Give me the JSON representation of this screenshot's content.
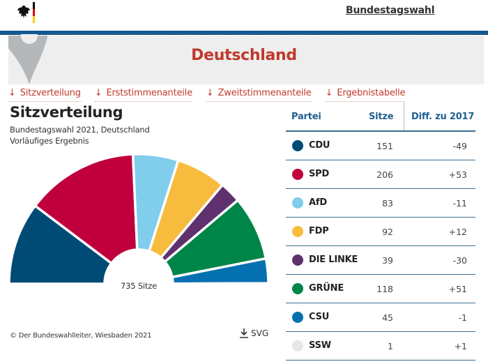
{
  "header": {
    "logo_icon": "federal-eagle-icon",
    "nav_link": "Bundestagswahl"
  },
  "banner": {
    "title": "Deutschland",
    "icon": "map-pin-icon"
  },
  "anchors": [
    {
      "label": "Sitzverteilung",
      "icon": "arrow-down-icon"
    },
    {
      "label": "Erststimmenanteile",
      "icon": "arrow-down-icon"
    },
    {
      "label": "Zweitstimmenanteile",
      "icon": "arrow-down-icon"
    },
    {
      "label": "Ergebnistabelle",
      "icon": "arrow-down-icon"
    }
  ],
  "section": {
    "title": "Sitzverteilung",
    "subtitle1": "Bundestagswahl 2021, Deutschland",
    "subtitle2": "Vorläufiges Ergebnis",
    "total_label": "735 Sitze",
    "copyright": "© Der Bundeswahlleiter, Wiesbaden 2021",
    "download_label": "SVG",
    "download_icon": "download-icon"
  },
  "table": {
    "headers": {
      "party": "Partei",
      "seats": "Sitze",
      "diff": "Diff. zu 2017"
    },
    "rows": [
      {
        "party": "CDU",
        "seats": "151",
        "diff": "-49",
        "color": "#004b76"
      },
      {
        "party": "SPD",
        "seats": "206",
        "diff": "+53",
        "color": "#c0003d"
      },
      {
        "party": "AfD",
        "seats": "83",
        "diff": "-11",
        "color": "#80cdec"
      },
      {
        "party": "FDP",
        "seats": "92",
        "diff": "+12",
        "color": "#f7bb3d"
      },
      {
        "party": "DIE LINKE",
        "seats": "39",
        "diff": "-30",
        "color": "#5f316e"
      },
      {
        "party": "GRÜNE",
        "seats": "118",
        "diff": "+51",
        "color": "#008549"
      },
      {
        "party": "CSU",
        "seats": "45",
        "diff": "-1",
        "color": "#0570b0"
      },
      {
        "party": "SSW",
        "seats": "1",
        "diff": "+1",
        "color": "#e6e6e6"
      }
    ]
  },
  "chart_data": {
    "type": "pie",
    "subtype": "semicircle-donut",
    "title": "Sitzverteilung",
    "subtitle": "Bundestagswahl 2021, Deutschland — Vorläufiges Ergebnis",
    "total": 735,
    "center_label": "735 Sitze",
    "categories": [
      "CDU",
      "SPD",
      "AfD",
      "FDP",
      "DIE LINKE",
      "GRÜNE",
      "CSU",
      "SSW"
    ],
    "values": [
      151,
      206,
      83,
      92,
      39,
      118,
      45,
      1
    ],
    "colors": [
      "#004b76",
      "#c0003d",
      "#80cdec",
      "#f7bb3d",
      "#5f316e",
      "#008549",
      "#0570b0",
      "#e6e6e6"
    ],
    "diff_to_2017": [
      -49,
      53,
      -11,
      12,
      -30,
      51,
      -1,
      1
    ]
  }
}
